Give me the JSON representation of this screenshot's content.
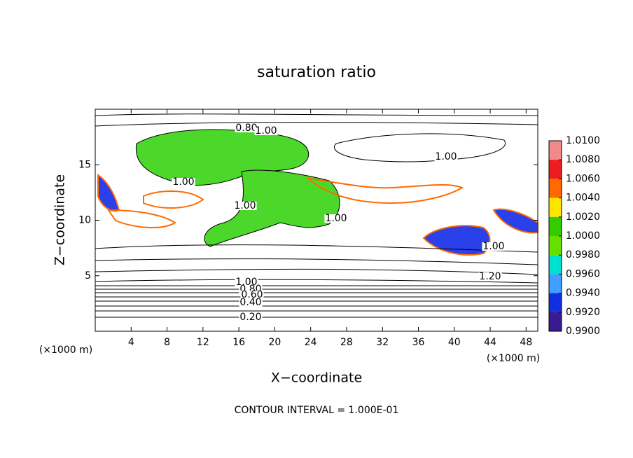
{
  "chart_data": {
    "type": "contour",
    "title": "saturation ratio",
    "x_label": "X−coordinate",
    "y_label": "Z−coordinate",
    "x_unit": "(×1000 m)",
    "y_unit": "(×1000 m)",
    "footer": "CONTOUR INTERVAL = 1.000E-01",
    "xlim": [
      0,
      49.3
    ],
    "ylim": [
      0,
      20
    ],
    "xticks": [
      4,
      8,
      12,
      16,
      20,
      24,
      28,
      32,
      36,
      40,
      44,
      48
    ],
    "yticks": [
      5,
      10,
      15
    ],
    "colorbar": {
      "ticks": [
        {
          "value": 1.01,
          "label": "1.0100"
        },
        {
          "value": 1.008,
          "label": "1.0080"
        },
        {
          "value": 1.006,
          "label": "1.0060"
        },
        {
          "value": 1.004,
          "label": "1.0040"
        },
        {
          "value": 1.002,
          "label": "1.0020"
        },
        {
          "value": 1.0,
          "label": "1.0000"
        },
        {
          "value": 0.998,
          "label": "0.9980"
        },
        {
          "value": 0.996,
          "label": "0.9960"
        },
        {
          "value": 0.994,
          "label": "0.9940"
        },
        {
          "value": 0.992,
          "label": "0.9920"
        },
        {
          "value": 0.99,
          "label": "0.9900"
        }
      ],
      "colors": [
        "#f08a8a",
        "#ee1c1c",
        "#ff6a00",
        "#ffe600",
        "#33cc00",
        "#66e000",
        "#00e0d0",
        "#3fa0ff",
        "#1030e0",
        "#3a1a90"
      ]
    },
    "contour_labels": [
      {
        "value": 0.8,
        "label": "0.80"
      },
      {
        "value": 1.0,
        "label": "1.00"
      },
      {
        "value": 1.0,
        "label": "1.00"
      },
      {
        "value": 1.0,
        "label": "1.00"
      },
      {
        "value": 1.0,
        "label": "1.00"
      },
      {
        "value": 1.0,
        "label": "1.00"
      },
      {
        "value": 1.0,
        "label": "1.00"
      },
      {
        "value": 1.2,
        "label": "1.20"
      },
      {
        "value": 1.0,
        "label": "1.00"
      },
      {
        "value": 0.8,
        "label": "0.80"
      },
      {
        "value": 0.6,
        "label": "0.60"
      },
      {
        "value": 0.4,
        "label": "0.40"
      },
      {
        "value": 0.2,
        "label": "0.20"
      }
    ]
  }
}
